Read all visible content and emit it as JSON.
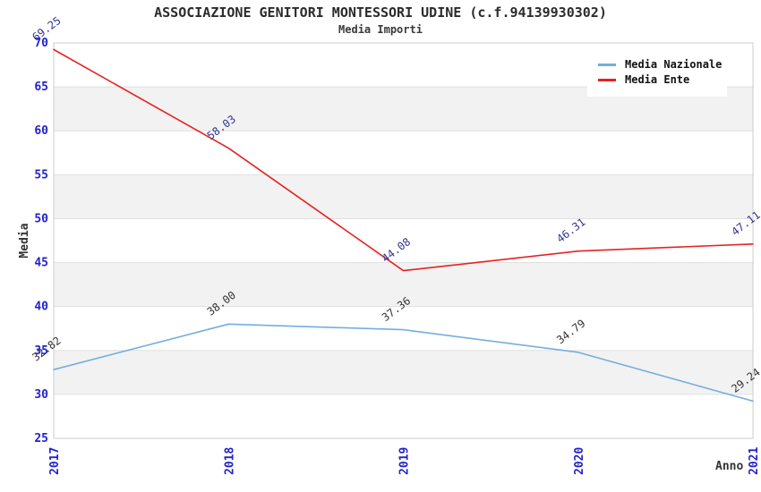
{
  "chart_data": {
    "type": "line",
    "title": "ASSOCIAZIONE GENITORI MONTESSORI UDINE (c.f.94139930302)",
    "subtitle": "Media Importi",
    "xlabel": "Anno",
    "ylabel": "Media",
    "x": [
      "2017",
      "2018",
      "2019",
      "2020",
      "2021"
    ],
    "series": [
      {
        "name": "Media Nazionale",
        "color": "#74aede",
        "label_color": "#333333",
        "values": [
          32.82,
          38.0,
          37.36,
          34.79,
          29.24
        ]
      },
      {
        "name": "Media Ente",
        "color": "#e62222",
        "label_color": "#333399",
        "values": [
          69.25,
          58.03,
          44.08,
          46.31,
          47.11
        ]
      }
    ],
    "ylim": [
      25,
      70
    ],
    "ytick_step": 5,
    "yticks": [
      25,
      30,
      35,
      40,
      45,
      50,
      55,
      60,
      65,
      70
    ],
    "tick_color": "#2222cc",
    "band_colors": [
      "#ffffff",
      "#f2f2f2"
    ],
    "gridline_color": "#e0e0e0",
    "border_color": "#cccccc",
    "legend_position": "top-right",
    "grid": "horizontal-bands",
    "label_format_decimals": 2
  }
}
